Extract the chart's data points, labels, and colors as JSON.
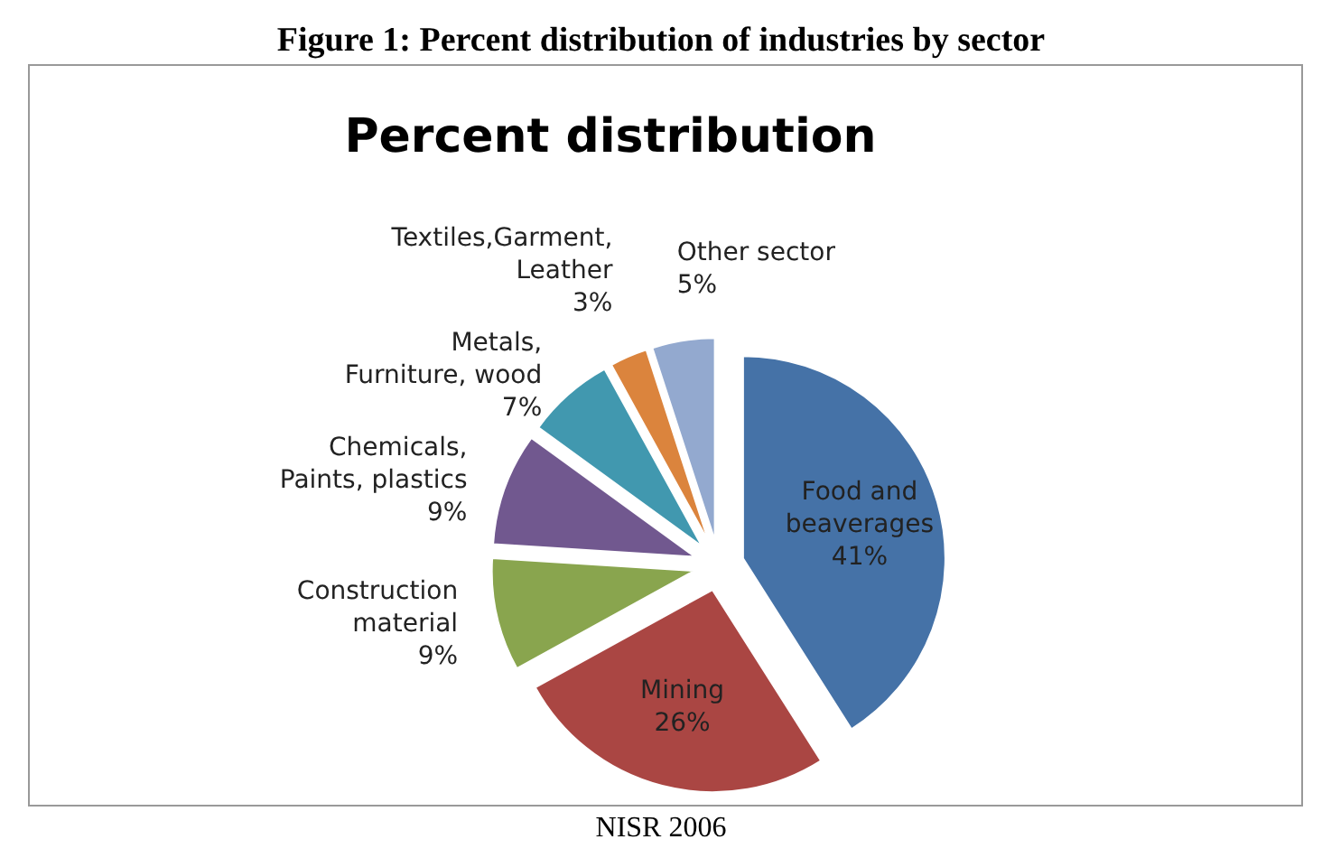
{
  "chart_data": {
    "type": "pie",
    "title": "Figure 1: Percent distribution of industries by sector",
    "subtitle": "Percent distribution",
    "categories": [
      "Food and beaverages",
      "Mining",
      "Construction material",
      "Chemicals, Paints, plastics",
      "Metals, Furniture, wood",
      "Textiles,Garment, Leather",
      "Other sector"
    ],
    "values": [
      41,
      26,
      9,
      9,
      7,
      3,
      5
    ],
    "value_labels": [
      "41%",
      "26%",
      "9%",
      "9%",
      "7%",
      "3%",
      "5%"
    ],
    "colors": [
      "#4572a7",
      "#aa4643",
      "#89a54e",
      "#71588f",
      "#4198af",
      "#db843d",
      "#93a9cf"
    ],
    "annotations": [
      "NISR 2006"
    ]
  }
}
